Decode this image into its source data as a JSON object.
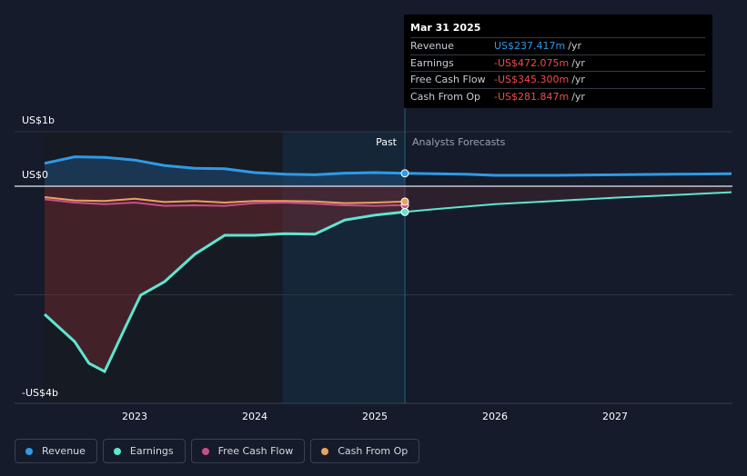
{
  "chart_data": {
    "type": "line",
    "title": "",
    "xlabel": "",
    "ylabel": "",
    "xlim": [
      2022.25,
      2027.97
    ],
    "ylim": [
      -4.0,
      1.0
    ],
    "y_axis_labels": [
      {
        "value": 1.0,
        "label": "US$1b"
      },
      {
        "value": 0.0,
        "label": "US$0"
      },
      {
        "value": -4.0,
        "label": "-US$4b"
      }
    ],
    "x_ticks": [
      {
        "value": 2023,
        "label": "2023"
      },
      {
        "value": 2024,
        "label": "2024"
      },
      {
        "value": 2025,
        "label": "2025"
      },
      {
        "value": 2026,
        "label": "2026"
      },
      {
        "value": 2027,
        "label": "2027"
      }
    ],
    "past_label": "Past",
    "forecast_label": "Analysts Forecasts",
    "past_shade_start": 2024.23,
    "split_x": 2025.25,
    "grid": true,
    "legend_position": "bottom-left",
    "series": [
      {
        "name": "Revenue",
        "color": "#2f9ae6",
        "points": [
          [
            2022.25,
            0.42
          ],
          [
            2022.5,
            0.54
          ],
          [
            2022.75,
            0.53
          ],
          [
            2023.0,
            0.48
          ],
          [
            2023.25,
            0.38
          ],
          [
            2023.5,
            0.33
          ],
          [
            2023.75,
            0.32
          ],
          [
            2024.0,
            0.25
          ],
          [
            2024.25,
            0.22
          ],
          [
            2024.5,
            0.21
          ],
          [
            2024.75,
            0.24
          ],
          [
            2025.0,
            0.25
          ],
          [
            2025.25,
            0.237
          ]
        ],
        "forecast": [
          [
            2025.25,
            0.237
          ],
          [
            2025.75,
            0.22
          ],
          [
            2026.0,
            0.2
          ],
          [
            2026.5,
            0.2
          ],
          [
            2027.0,
            0.21
          ],
          [
            2027.5,
            0.22
          ],
          [
            2027.97,
            0.23
          ]
        ]
      },
      {
        "name": "Earnings",
        "color": "#5ee6d0",
        "points": [
          [
            2022.25,
            -2.35
          ],
          [
            2022.5,
            -2.85
          ],
          [
            2022.62,
            -3.25
          ],
          [
            2022.75,
            -3.4
          ],
          [
            2022.92,
            -2.6
          ],
          [
            2023.05,
            -2.0
          ],
          [
            2023.25,
            -1.75
          ],
          [
            2023.5,
            -1.25
          ],
          [
            2023.75,
            -0.9
          ],
          [
            2024.0,
            -0.9
          ],
          [
            2024.25,
            -0.87
          ],
          [
            2024.5,
            -0.88
          ],
          [
            2024.75,
            -0.62
          ],
          [
            2025.0,
            -0.53
          ],
          [
            2025.25,
            -0.472
          ]
        ],
        "forecast": [
          [
            2025.25,
            -0.472
          ],
          [
            2025.5,
            -0.42
          ],
          [
            2026.0,
            -0.33
          ],
          [
            2026.5,
            -0.27
          ],
          [
            2027.0,
            -0.21
          ],
          [
            2027.5,
            -0.16
          ],
          [
            2027.97,
            -0.11
          ]
        ]
      },
      {
        "name": "Free Cash Flow",
        "color": "#c94d8b",
        "points": [
          [
            2022.25,
            -0.24
          ],
          [
            2022.5,
            -0.3
          ],
          [
            2022.75,
            -0.33
          ],
          [
            2023.0,
            -0.3
          ],
          [
            2023.25,
            -0.36
          ],
          [
            2023.5,
            -0.35
          ],
          [
            2023.75,
            -0.36
          ],
          [
            2024.0,
            -0.31
          ],
          [
            2024.25,
            -0.3
          ],
          [
            2024.5,
            -0.32
          ],
          [
            2024.75,
            -0.35
          ],
          [
            2025.0,
            -0.36
          ],
          [
            2025.25,
            -0.345
          ]
        ],
        "forecast": []
      },
      {
        "name": "Cash From Op",
        "color": "#e8a45c",
        "points": [
          [
            2022.25,
            -0.2
          ],
          [
            2022.5,
            -0.26
          ],
          [
            2022.75,
            -0.27
          ],
          [
            2023.0,
            -0.23
          ],
          [
            2023.25,
            -0.29
          ],
          [
            2023.5,
            -0.27
          ],
          [
            2023.75,
            -0.3
          ],
          [
            2024.0,
            -0.27
          ],
          [
            2024.25,
            -0.27
          ],
          [
            2024.5,
            -0.28
          ],
          [
            2024.75,
            -0.31
          ],
          [
            2025.0,
            -0.3
          ],
          [
            2025.25,
            -0.282
          ]
        ],
        "forecast": []
      }
    ]
  },
  "tooltip": {
    "date": "Mar 31 2025",
    "unit": "/yr",
    "rows": [
      {
        "label": "Revenue",
        "value": "US$237.417m",
        "sign": "pos"
      },
      {
        "label": "Earnings",
        "value": "-US$472.075m",
        "sign": "neg"
      },
      {
        "label": "Free Cash Flow",
        "value": "-US$345.300m",
        "sign": "neg"
      },
      {
        "label": "Cash From Op",
        "value": "-US$281.847m",
        "sign": "neg"
      }
    ]
  },
  "legend": [
    {
      "label": "Revenue",
      "color": "#2f9ae6"
    },
    {
      "label": "Earnings",
      "color": "#5ee6d0"
    },
    {
      "label": "Free Cash Flow",
      "color": "#c94d8b"
    },
    {
      "label": "Cash From Op",
      "color": "#e8a45c"
    }
  ]
}
